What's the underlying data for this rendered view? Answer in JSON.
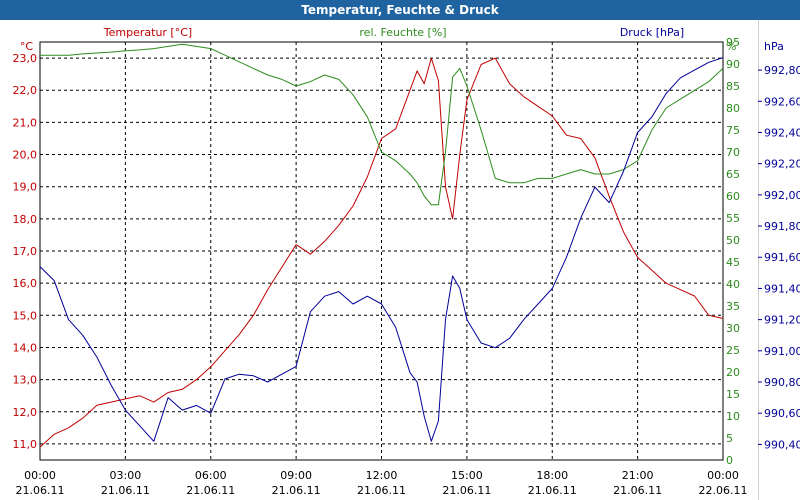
{
  "window": {
    "title": "Temperatur, Feuchte & Druck"
  },
  "colors": {
    "temperature": "#c00000",
    "humidity": "#2e8b1e",
    "pressure": "#000099",
    "titlebar": "#1f63a0"
  },
  "chart_data": {
    "type": "line",
    "title": "Temperatur, Feuchte & Druck",
    "x": [
      "00:00",
      "03:00",
      "06:00",
      "09:00",
      "12:00",
      "15:00",
      "18:00",
      "21:00",
      "00:00"
    ],
    "x_dates": [
      "21.06.11",
      "21.06.11",
      "21.06.11",
      "21.06.11",
      "21.06.11",
      "21.06.11",
      "21.06.11",
      "21.06.11",
      "22.06.11"
    ],
    "x_hours_range": [
      0,
      24
    ],
    "grid": true,
    "axes": {
      "temperature": {
        "unit": "°C",
        "label": "Temperatur [°C]",
        "range": [
          10.5,
          23.5
        ],
        "ticks": [
          "11,0",
          "12,0",
          "13,0",
          "14,0",
          "15,0",
          "16,0",
          "17,0",
          "18,0",
          "19,0",
          "20,0",
          "21,0",
          "22,0",
          "23,0"
        ]
      },
      "humidity": {
        "unit": "%",
        "label": "rel. Feuchte [%]",
        "range": [
          0,
          95
        ],
        "ticks": [
          "0",
          "5",
          "10",
          "15",
          "20",
          "25",
          "30",
          "35",
          "40",
          "45",
          "50",
          "55",
          "60",
          "65",
          "70",
          "75",
          "80",
          "85",
          "90",
          "95"
        ]
      },
      "pressure": {
        "unit": "hPa",
        "label": "Druck [hPa]",
        "range": [
          990.3,
          992.98
        ],
        "ticks": [
          "990,40",
          "990,60",
          "990,80",
          "991,00",
          "991,20",
          "991,40",
          "991,60",
          "991,80",
          "992,00",
          "992,20",
          "992,40",
          "992,60",
          "992,80"
        ]
      }
    },
    "series": [
      {
        "name": "Temperatur [°C]",
        "axis": "temperature",
        "x": [
          0,
          0.5,
          1,
          1.5,
          2,
          2.5,
          3,
          3.5,
          4,
          4.5,
          5,
          5.5,
          6,
          6.5,
          7,
          7.5,
          8,
          8.5,
          9,
          9.5,
          10,
          10.5,
          11,
          11.5,
          12,
          12.5,
          13,
          13.25,
          13.5,
          13.75,
          14,
          14.25,
          14.5,
          14.75,
          15,
          15.5,
          16,
          16.5,
          17,
          17.5,
          18,
          18.5,
          19,
          19.5,
          20,
          20.5,
          21,
          21.5,
          22,
          22.5,
          23,
          23.5,
          24
        ],
        "values": [
          10.9,
          11.3,
          11.5,
          11.8,
          12.2,
          12.3,
          12.4,
          12.5,
          12.3,
          12.6,
          12.7,
          13.0,
          13.4,
          13.9,
          14.4,
          15.0,
          15.8,
          16.5,
          17.2,
          16.9,
          17.3,
          17.8,
          18.4,
          19.3,
          20.5,
          20.8,
          22.0,
          22.6,
          22.2,
          23.0,
          22.3,
          19.0,
          18.0,
          20.0,
          21.7,
          22.8,
          23.0,
          22.2,
          21.8,
          21.5,
          21.2,
          20.6,
          20.5,
          19.9,
          18.7,
          17.6,
          16.8,
          16.4,
          16.0,
          15.8,
          15.6,
          15.0,
          14.9
        ]
      },
      {
        "name": "rel. Feuchte [%]",
        "axis": "humidity",
        "x": [
          0,
          0.5,
          1,
          1.5,
          2,
          2.5,
          3,
          3.5,
          4,
          4.5,
          5,
          5.5,
          6,
          6.5,
          7,
          7.5,
          8,
          8.5,
          9,
          9.5,
          10,
          10.5,
          11,
          11.5,
          12,
          12.5,
          13,
          13.25,
          13.5,
          13.75,
          14,
          14.25,
          14.5,
          14.75,
          15,
          15.5,
          16,
          16.5,
          17,
          17.5,
          18,
          18.5,
          19,
          19.5,
          20,
          20.5,
          21,
          21.5,
          22,
          22.5,
          23,
          23.5,
          24
        ],
        "values": [
          92,
          92,
          92,
          92.3,
          92.5,
          92.7,
          93,
          93.2,
          93.5,
          94,
          94.5,
          94,
          93.5,
          92,
          90.5,
          89,
          87.5,
          86.5,
          85,
          86,
          87.5,
          86.5,
          83,
          78,
          70,
          68,
          65,
          63,
          60,
          58,
          58,
          70,
          87,
          89,
          85,
          75,
          64,
          63,
          63,
          64,
          64,
          65,
          66,
          65,
          65,
          66,
          68,
          75,
          80,
          82,
          84,
          86,
          89
        ]
      },
      {
        "name": "Druck [hPa]",
        "axis": "pressure",
        "x": [
          0,
          0.5,
          1,
          1.5,
          2,
          2.5,
          3,
          3.5,
          4,
          4.5,
          5,
          5.5,
          6,
          6.5,
          7,
          7.5,
          8,
          8.5,
          9,
          9.5,
          10,
          10.5,
          11,
          11.5,
          12,
          12.5,
          13,
          13.25,
          13.5,
          13.75,
          14,
          14.25,
          14.5,
          14.75,
          15,
          15.5,
          16,
          16.5,
          17,
          17.5,
          18,
          18.5,
          19,
          19.5,
          20,
          20.5,
          21,
          21.5,
          22,
          22.5,
          23,
          23.5,
          24
        ],
        "values": [
          991.54,
          991.45,
          991.2,
          991.1,
          990.96,
          990.78,
          990.62,
          990.52,
          990.42,
          990.7,
          990.62,
          990.65,
          990.6,
          990.82,
          990.85,
          990.84,
          990.8,
          990.85,
          990.9,
          991.25,
          991.35,
          991.38,
          991.3,
          991.35,
          991.3,
          991.15,
          990.86,
          990.8,
          990.58,
          990.42,
          990.55,
          991.2,
          991.48,
          991.4,
          991.2,
          991.05,
          991.02,
          991.08,
          991.2,
          991.3,
          991.4,
          991.6,
          991.85,
          992.05,
          991.95,
          992.15,
          992.4,
          992.5,
          992.65,
          992.75,
          992.8,
          992.85,
          992.88
        ]
      }
    ]
  }
}
